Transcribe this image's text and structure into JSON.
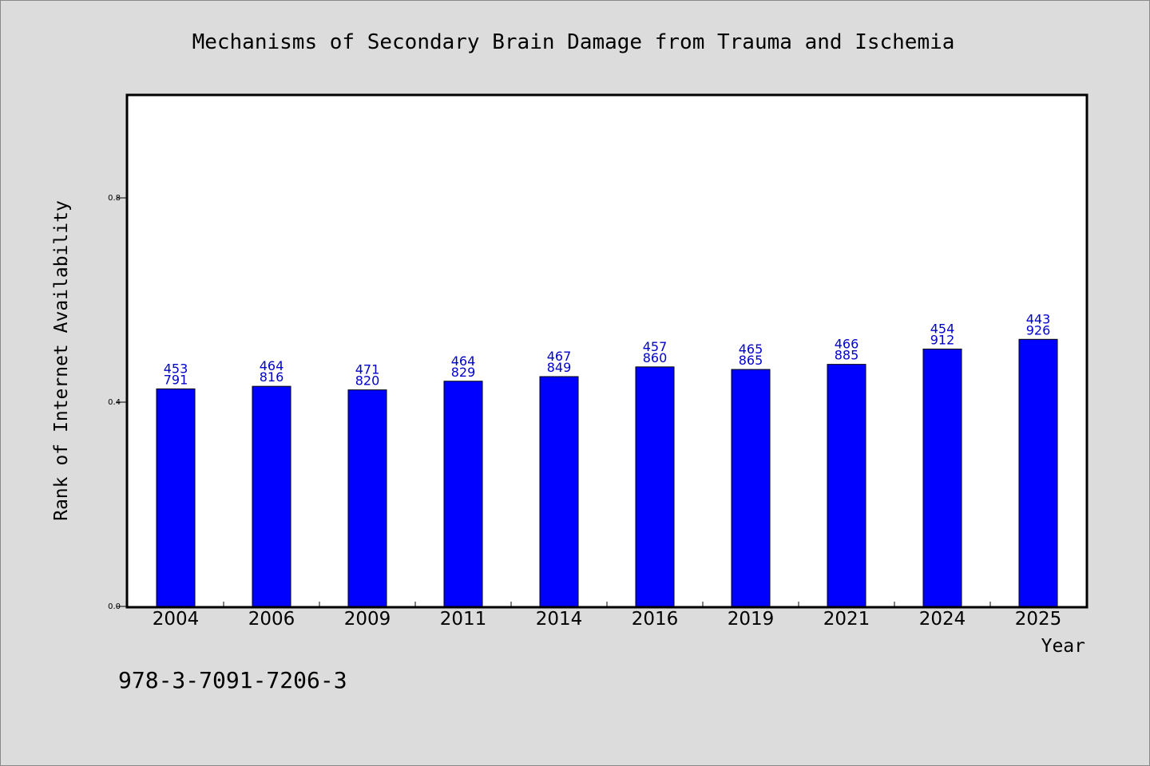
{
  "chart_data": {
    "type": "bar",
    "title": "Mechanisms of Secondary Brain Damage from Trauma and Ischemia",
    "xlabel": "Year",
    "ylabel": "Rank of Internet Availability",
    "categories": [
      "2004",
      "2006",
      "2009",
      "2011",
      "2014",
      "2016",
      "2019",
      "2021",
      "2024",
      "2025"
    ],
    "values": [
      0.426,
      0.431,
      0.424,
      0.441,
      0.45,
      0.469,
      0.464,
      0.474,
      0.504,
      0.523
    ],
    "labels_top": [
      "453",
      "464",
      "471",
      "464",
      "467",
      "457",
      "465",
      "466",
      "454",
      "443"
    ],
    "labels_bottom": [
      "791",
      "816",
      "820",
      "829",
      "849",
      "860",
      "865",
      "885",
      "912",
      "926"
    ],
    "ylim": [
      0,
      1.0
    ],
    "yticks": [
      "0.0",
      "0.4",
      "0.8"
    ],
    "ytick_values": [
      0,
      0.4,
      0.8
    ],
    "bar_color": "#0000ff",
    "label_color": "#0000c8",
    "background_color": "#dcdcdc",
    "plot_background": "#ffffff",
    "grid": false,
    "legend": "none"
  },
  "footnote": "978-3-7091-7206-3"
}
